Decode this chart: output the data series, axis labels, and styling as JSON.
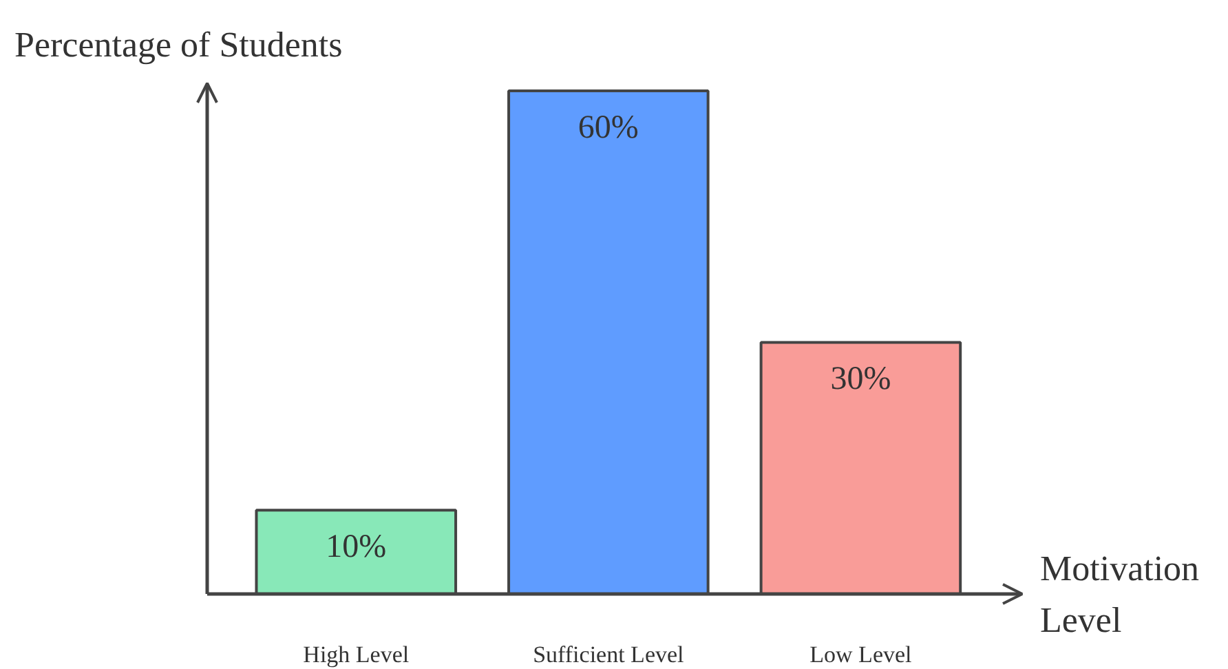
{
  "chart_data": {
    "type": "bar",
    "ylabel": "Percentage of Students",
    "xlabel": "Motivation\nLevel",
    "categories": [
      "High Level",
      "Sufficient Level",
      "Low Level"
    ],
    "values": [
      10,
      60,
      30
    ],
    "value_labels": [
      "10%",
      "60%",
      "30%"
    ],
    "colors": [
      "#88e8b8",
      "#5f9cff",
      "#f99c98"
    ],
    "tick_labels": "x",
    "grid": false
  }
}
